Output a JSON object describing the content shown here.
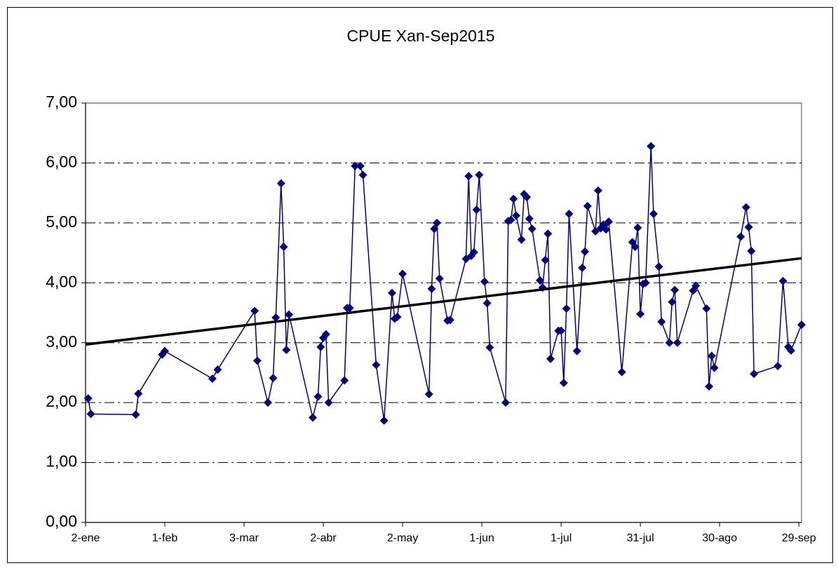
{
  "chart_data": {
    "type": "line",
    "title": "CPUE Xan-Sep2015",
    "xlim": [
      0,
      271
    ],
    "xticks": [
      {
        "value": 0,
        "label": "2-ene"
      },
      {
        "value": 30,
        "label": "1-feb"
      },
      {
        "value": 60,
        "label": "3-mar"
      },
      {
        "value": 90,
        "label": "2-abr"
      },
      {
        "value": 120,
        "label": "2-may"
      },
      {
        "value": 150,
        "label": "1-jun"
      },
      {
        "value": 180,
        "label": "1-jul"
      },
      {
        "value": 210,
        "label": "31-jul"
      },
      {
        "value": 240,
        "label": "30-ago"
      },
      {
        "value": 270,
        "label": "29-sep"
      }
    ],
    "ylim": [
      0,
      7
    ],
    "yticks": [
      {
        "value": 0,
        "label": "0,00"
      },
      {
        "value": 1,
        "label": "1,00"
      },
      {
        "value": 2,
        "label": "2,00"
      },
      {
        "value": 3,
        "label": "3,00"
      },
      {
        "value": 4,
        "label": "4,00"
      },
      {
        "value": 5,
        "label": "5,00"
      },
      {
        "value": 6,
        "label": "6,00"
      },
      {
        "value": 7,
        "label": "7,00"
      }
    ],
    "grid": true,
    "series": [
      {
        "color": "#000080",
        "marker": "diamond",
        "x": [
          1,
          2,
          19,
          20,
          29,
          30,
          48,
          50,
          64,
          65,
          69,
          71,
          72,
          74,
          75,
          76,
          77,
          86,
          88,
          89,
          90,
          91,
          92,
          98,
          99,
          100,
          102,
          104,
          105,
          110,
          113,
          116,
          117,
          118,
          120,
          130,
          131,
          132,
          133,
          134,
          137,
          138,
          144,
          145,
          146,
          147,
          148,
          149,
          151,
          152,
          153,
          159,
          160,
          161,
          162,
          163,
          165,
          166,
          167,
          168,
          169,
          172,
          173,
          174,
          175,
          176,
          179,
          180,
          181,
          182,
          183,
          186,
          188,
          189,
          190,
          193,
          194,
          195,
          196,
          197,
          198,
          203,
          207,
          208,
          209,
          210,
          211,
          212,
          214,
          215,
          217,
          218,
          221,
          222,
          223,
          224,
          230,
          231,
          235,
          236,
          237,
          238,
          248,
          250,
          251,
          252,
          253,
          262,
          264,
          266,
          267,
          271
        ],
        "values": [
          2.07,
          1.81,
          1.8,
          2.15,
          2.8,
          2.86,
          2.4,
          2.55,
          3.53,
          2.7,
          2.0,
          2.41,
          3.42,
          5.66,
          4.6,
          2.88,
          3.47,
          1.75,
          2.1,
          2.93,
          3.08,
          3.14,
          2.0,
          2.37,
          3.58,
          3.58,
          5.95,
          5.95,
          5.8,
          2.63,
          1.7,
          3.83,
          3.4,
          3.43,
          4.15,
          2.14,
          3.9,
          4.9,
          5.0,
          4.07,
          3.37,
          3.38,
          4.4,
          5.78,
          4.45,
          4.51,
          5.22,
          5.8,
          4.02,
          3.66,
          2.92,
          2.0,
          5.03,
          5.05,
          5.4,
          5.12,
          4.72,
          5.48,
          5.43,
          5.07,
          4.9,
          4.04,
          3.92,
          4.38,
          4.82,
          2.73,
          3.2,
          3.2,
          2.33,
          3.57,
          5.15,
          2.86,
          4.25,
          4.52,
          5.28,
          4.86,
          5.54,
          4.91,
          4.97,
          4.89,
          5.02,
          2.51,
          4.68,
          4.6,
          4.92,
          3.48,
          3.98,
          4.0,
          6.28,
          5.15,
          4.27,
          3.35,
          3.0,
          3.68,
          3.88,
          3.0,
          3.87,
          3.95,
          3.57,
          2.27,
          2.78,
          2.58,
          4.77,
          5.26,
          4.93,
          4.53,
          2.48,
          2.61,
          4.03,
          2.93,
          2.87,
          3.3
        ]
      },
      {
        "color": "#000000",
        "marker": "none",
        "x": [
          0,
          271
        ],
        "values": [
          2.97,
          4.41
        ]
      }
    ]
  }
}
